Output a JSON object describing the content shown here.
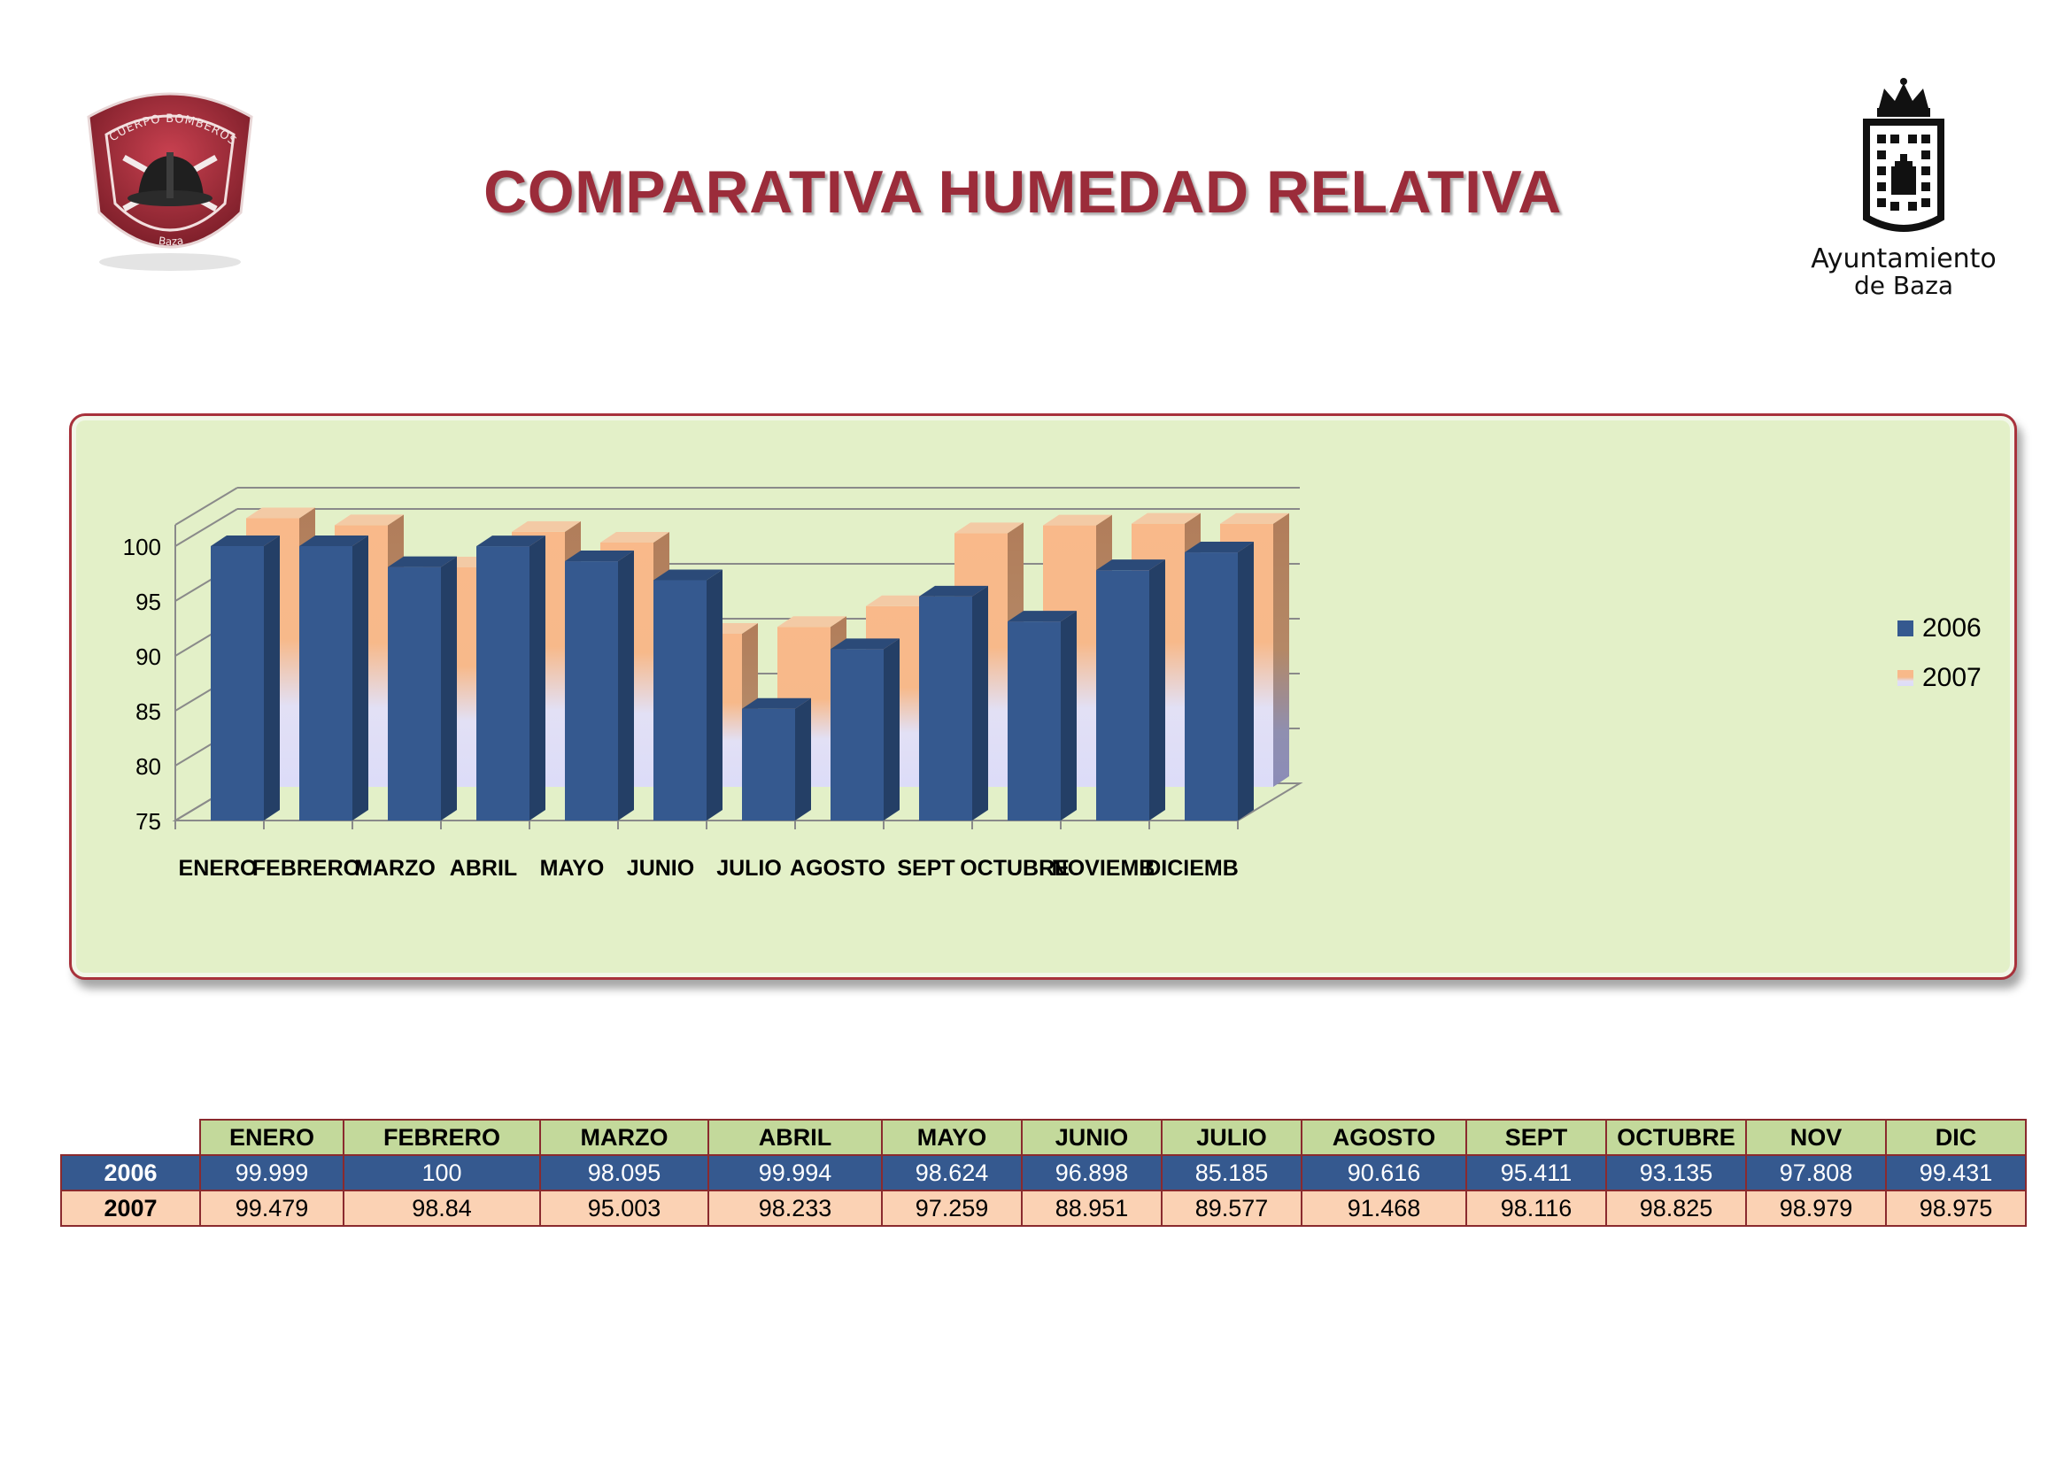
{
  "title": "COMPARATIVA HUMEDAD RELATIVA",
  "logos": {
    "left": {
      "ring_top": "CUERPO BOMBEROS",
      "ring_bottom": "Baza"
    },
    "right": {
      "line1": "Ayuntamiento",
      "line2": "de Baza"
    }
  },
  "colors": {
    "series_2006": "#35598f",
    "series_2007": "#f7b98a",
    "chart_bg": "#e3f0c8",
    "frame": "#a8323c",
    "title": "#9b2c3a",
    "table_header_bg": "#c3d99b",
    "table_2007_bg": "#fbd2b4"
  },
  "chart_data": {
    "type": "bar",
    "title": "",
    "xlabel": "",
    "ylabel": "",
    "ylim": [
      75,
      100
    ],
    "yticks": [
      "75",
      "80",
      "85",
      "90",
      "95",
      "100"
    ],
    "grid": true,
    "legend_position": "right",
    "categories": [
      "ENERO",
      "FEBRERO",
      "MARZO",
      "ABRIL",
      "MAYO",
      "JUNIO",
      "JULIO",
      "AGOSTO",
      "SEPT",
      "OCTUBRE",
      "NOVIEMB",
      "DICIEMB"
    ],
    "series": [
      {
        "name": "2006",
        "values": [
          99.999,
          100,
          98.095,
          99.994,
          98.624,
          96.898,
          85.185,
          90.616,
          95.411,
          93.135,
          97.808,
          99.431
        ]
      },
      {
        "name": "2007",
        "values": [
          99.479,
          98.84,
          95.003,
          98.233,
          97.259,
          88.951,
          89.577,
          91.468,
          98.116,
          98.825,
          98.979,
          98.975
        ]
      }
    ]
  },
  "table": {
    "headers": [
      "ENERO",
      "FEBRERO",
      "MARZO",
      "ABRIL",
      "MAYO",
      "JUNIO",
      "JULIO",
      "AGOSTO",
      "SEPT",
      "OCTUBRE",
      "NOV",
      "DIC"
    ],
    "rows": [
      {
        "label": "2006",
        "values": [
          "99.999",
          "100",
          "98.095",
          "99.994",
          "98.624",
          "96.898",
          "85.185",
          "90.616",
          "95.411",
          "93.135",
          "97.808",
          "99.431"
        ]
      },
      {
        "label": "2007",
        "values": [
          "99.479",
          "98.84",
          "95.003",
          "98.233",
          "97.259",
          "88.951",
          "89.577",
          "91.468",
          "98.116",
          "98.825",
          "98.979",
          "98.975"
        ]
      }
    ]
  }
}
